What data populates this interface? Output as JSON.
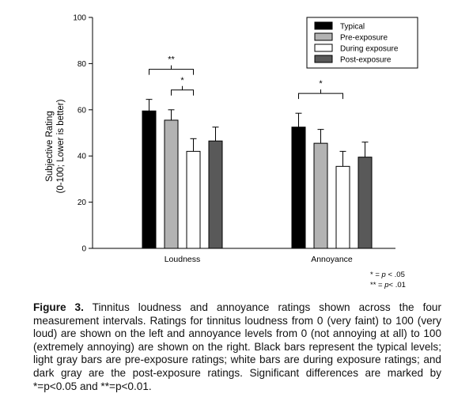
{
  "chart_data": {
    "type": "bar",
    "ylabel_line1": "Subjective Rating",
    "ylabel_line2": "(0-100; Lower is better)",
    "ylim": [
      0,
      100
    ],
    "yticks": [
      0,
      20,
      40,
      60,
      80,
      100
    ],
    "categories": [
      "Loudness",
      "Annoyance"
    ],
    "series": [
      {
        "name": "Typical",
        "values": [
          59.5,
          52.5
        ],
        "errors": [
          5,
          6
        ],
        "color": "#000000"
      },
      {
        "name": "Pre-exposure",
        "values": [
          55.5,
          45.5
        ],
        "errors": [
          4.5,
          6
        ],
        "color": "#b3b3b3"
      },
      {
        "name": "During exposure",
        "values": [
          42,
          35.5
        ],
        "errors": [
          5.5,
          6.5
        ],
        "color": "#ffffff"
      },
      {
        "name": "Post-exposure",
        "values": [
          46.5,
          39.5
        ],
        "errors": [
          6,
          6.5
        ],
        "color": "#595959"
      }
    ],
    "legend_position": "top-right",
    "grid": false,
    "significance": [
      {
        "category": "Loudness",
        "from_series": 0,
        "to_series": 2,
        "label": "**"
      },
      {
        "category": "Loudness",
        "from_series": 1,
        "to_series": 2,
        "label": "*"
      },
      {
        "category": "Annoyance",
        "from_series": 0,
        "to_series": 2,
        "label": "*"
      }
    ]
  },
  "notes": {
    "single": "* = ",
    "single_p": "p",
    "single_rest": " < .05",
    "double": "** = ",
    "double_p": "p",
    "double_rest": "< .01"
  },
  "caption": {
    "label": "Figure 3.",
    "text": " Tinnitus loudness and annoyance ratings shown across the four measurement intervals. Ratings for tinnitus loudness from 0 (very faint) to 100 (very loud) are shown on the left and annoyance levels from 0 (not annoying at all) to 100 (extremely annoying) are shown on the right. Black bars represent the typical levels; light gray bars are pre-exposure ratings; white bars are during exposure ratings; and dark gray are the post-exposure ratings. Significant differences are marked by *=p<0.05 and **=p<0.01."
  }
}
